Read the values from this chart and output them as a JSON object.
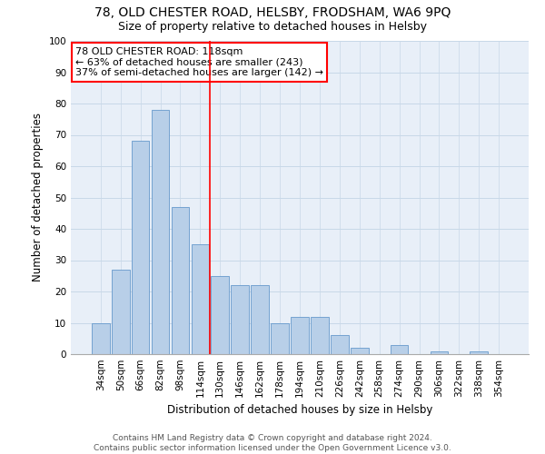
{
  "title1": "78, OLD CHESTER ROAD, HELSBY, FRODSHAM, WA6 9PQ",
  "title2": "Size of property relative to detached houses in Helsby",
  "xlabel": "Distribution of detached houses by size in Helsby",
  "ylabel": "Number of detached properties",
  "categories": [
    "34sqm",
    "50sqm",
    "66sqm",
    "82sqm",
    "98sqm",
    "114sqm",
    "130sqm",
    "146sqm",
    "162sqm",
    "178sqm",
    "194sqm",
    "210sqm",
    "226sqm",
    "242sqm",
    "258sqm",
    "274sqm",
    "290sqm",
    "306sqm",
    "322sqm",
    "338sqm",
    "354sqm"
  ],
  "values": [
    10,
    27,
    68,
    78,
    47,
    35,
    25,
    22,
    22,
    10,
    12,
    12,
    6,
    2,
    0,
    3,
    0,
    1,
    0,
    1,
    0
  ],
  "bar_color": "#b8cfe8",
  "bar_edge_color": "#6699cc",
  "property_line_x": 5.5,
  "annotation_text": "78 OLD CHESTER ROAD: 118sqm\n← 63% of detached houses are smaller (243)\n37% of semi-detached houses are larger (142) →",
  "annotation_box_color": "white",
  "annotation_box_edge_color": "red",
  "vline_color": "red",
  "ylim": [
    0,
    100
  ],
  "yticks": [
    0,
    10,
    20,
    30,
    40,
    50,
    60,
    70,
    80,
    90,
    100
  ],
  "grid_color": "#c8d8e8",
  "bg_color": "#e8eff8",
  "footnote": "Contains HM Land Registry data © Crown copyright and database right 2024.\nContains public sector information licensed under the Open Government Licence v3.0.",
  "title1_fontsize": 10,
  "title2_fontsize": 9,
  "xlabel_fontsize": 8.5,
  "ylabel_fontsize": 8.5,
  "tick_fontsize": 7.5,
  "annotation_fontsize": 8,
  "footnote_fontsize": 6.5
}
